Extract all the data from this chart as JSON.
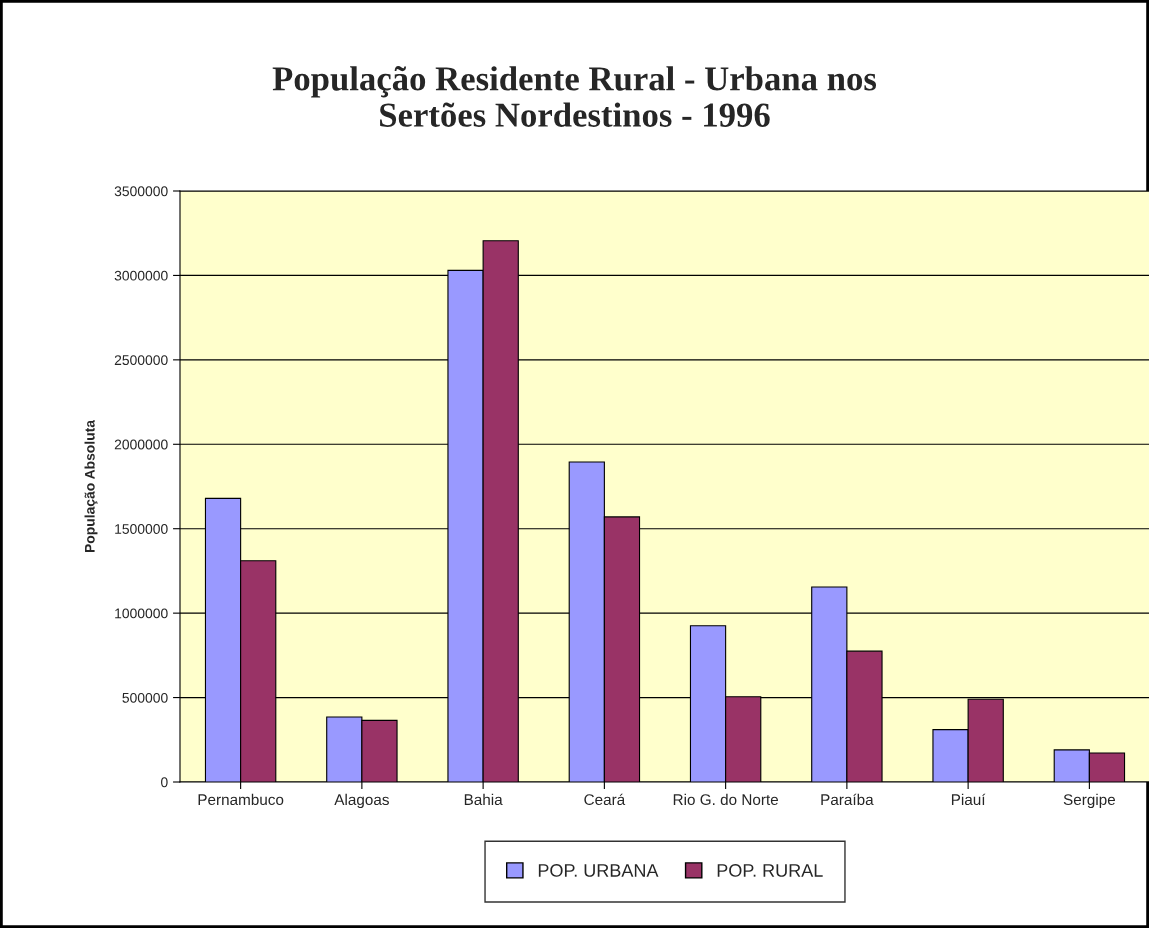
{
  "chart_data": {
    "type": "bar",
    "title": "População Residente Rural - Urbana nos\nSertões Nordestinos - 1996",
    "ylabel": "População Absoluta",
    "categories": [
      "Pernambuco",
      "Alagoas",
      "Bahia",
      "Ceará",
      "Rio G. do Norte",
      "Paraíba",
      "Piauí",
      "Sergipe"
    ],
    "series": [
      {
        "name": "POP. URBANA",
        "color": "#9999ff",
        "values": [
          1680000,
          385000,
          3030000,
          1895000,
          925000,
          1155000,
          310000,
          190000
        ]
      },
      {
        "name": "POP. RURAL",
        "color": "#993366",
        "values": [
          1310000,
          365000,
          3205000,
          1570000,
          505000,
          775000,
          490000,
          172000
        ]
      }
    ],
    "ylim": [
      0,
      3500000
    ],
    "yticks": [
      0,
      500000,
      1000000,
      1500000,
      2000000,
      2500000,
      3000000,
      3500000
    ],
    "grid": "y",
    "legend": "bottom"
  }
}
